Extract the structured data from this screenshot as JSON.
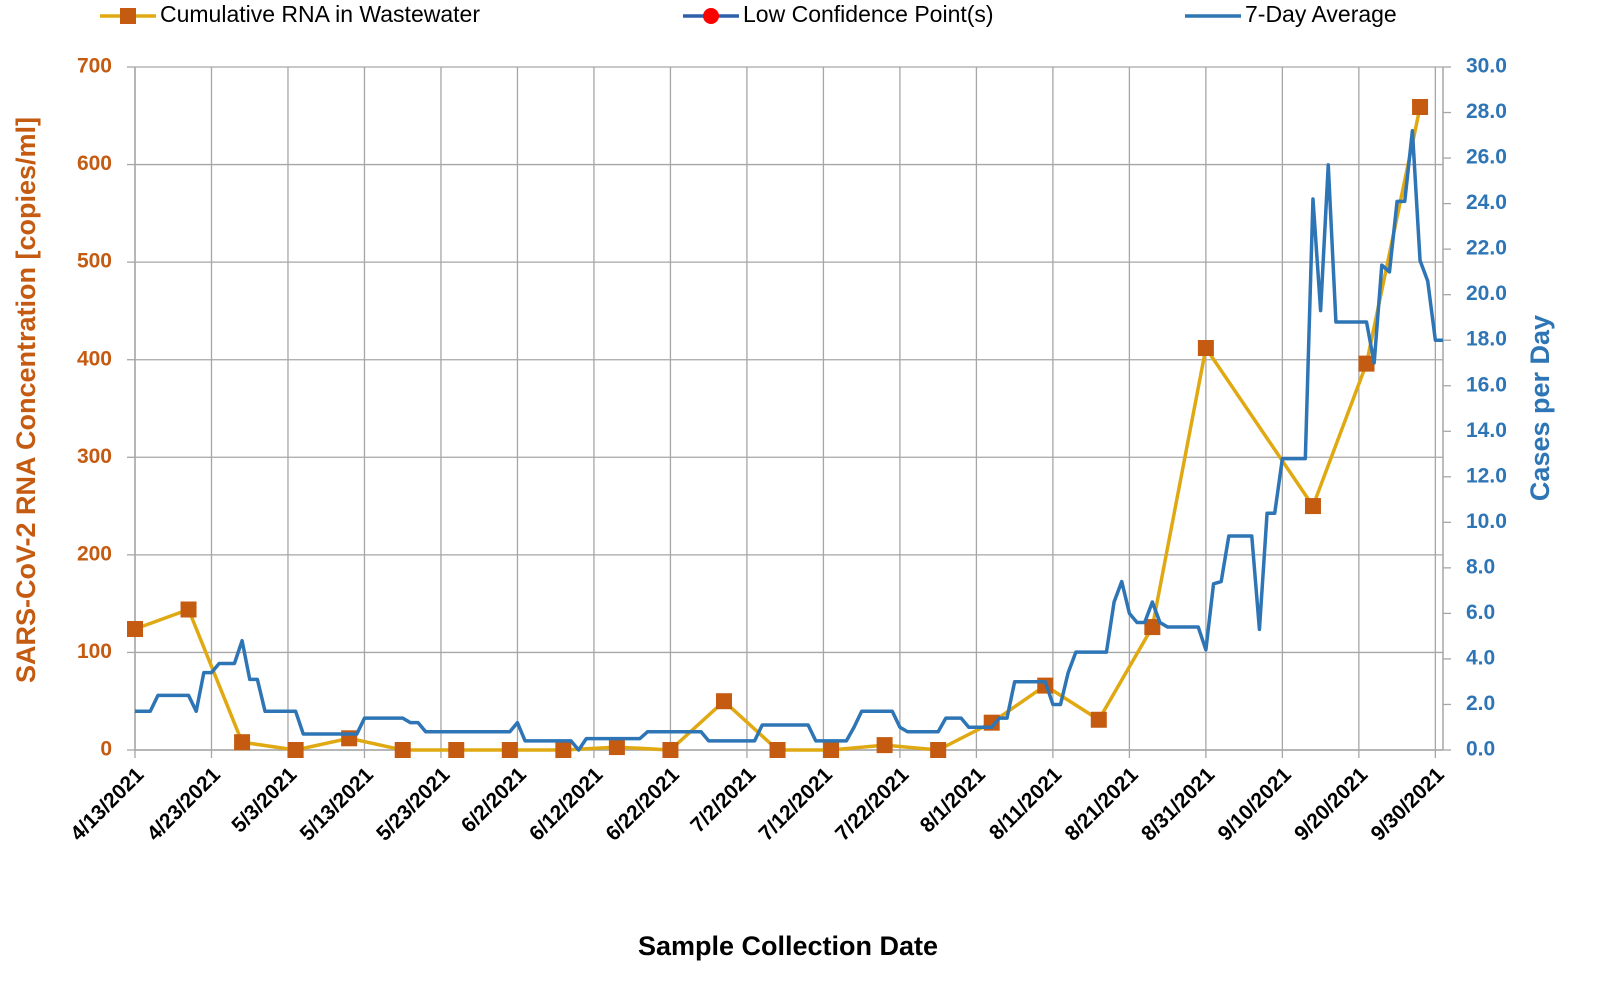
{
  "chart_data": {
    "type": "line",
    "x_label": "Sample Collection Date",
    "y_label": "SARS-CoV-2 RNA Concentration [copies/ml]",
    "y2_label": "Cases per Day",
    "xlim": [
      "4/13/2021",
      "10/1/2021"
    ],
    "xticks": [
      "4/13/2021",
      "4/23/2021",
      "5/3/2021",
      "5/13/2021",
      "5/23/2021",
      "6/2/2021",
      "6/12/2021",
      "6/22/2021",
      "7/2/2021",
      "7/12/2021",
      "7/22/2021",
      "8/1/2021",
      "8/11/2021",
      "8/21/2021",
      "8/31/2021",
      "9/10/2021",
      "9/20/2021",
      "9/30/2021"
    ],
    "ylim": [
      0,
      700
    ],
    "yticks": [
      0,
      100,
      200,
      300,
      400,
      500,
      600,
      700
    ],
    "y2lim": [
      0,
      30
    ],
    "y2ticks": [
      {
        "value": 0,
        "label": "0.0"
      },
      {
        "value": 2,
        "label": "2.0"
      },
      {
        "value": 4,
        "label": "4.0"
      },
      {
        "value": 6,
        "label": "6.0"
      },
      {
        "value": 8,
        "label": "8.0"
      },
      {
        "value": 10,
        "label": "10.0"
      },
      {
        "value": 12,
        "label": "12.0"
      },
      {
        "value": 14,
        "label": "14.0"
      },
      {
        "value": 16,
        "label": "16.0"
      },
      {
        "value": 18,
        "label": "18.0"
      },
      {
        "value": 20,
        "label": "20.0"
      },
      {
        "value": 22,
        "label": "22.0"
      },
      {
        "value": 24,
        "label": "24.0"
      },
      {
        "value": 26,
        "label": "26.0"
      },
      {
        "value": 28,
        "label": "28.0"
      },
      {
        "value": 30,
        "label": "30.0"
      }
    ],
    "grid": true,
    "y_color": "#c55a11",
    "y2_color": "#2e75b6",
    "series": [
      {
        "name": "Cumulative RNA in Wastewater",
        "color": "#e0a912",
        "marker_color": "#c55a11",
        "marker": "square",
        "axis": "y",
        "x": [
          "4/13/2021",
          "4/20/2021",
          "4/27/2021",
          "5/4/2021",
          "5/11/2021",
          "5/18/2021",
          "5/25/2021",
          "6/1/2021",
          "6/8/2021",
          "6/15/2021",
          "6/22/2021",
          "6/29/2021",
          "7/6/2021",
          "7/13/2021",
          "7/20/2021",
          "7/27/2021",
          "8/3/2021",
          "8/10/2021",
          "8/17/2021",
          "8/24/2021",
          "8/31/2021",
          "9/14/2021",
          "9/21/2021",
          "9/28/2021"
        ],
        "values": [
          124,
          144,
          8,
          0,
          12,
          0,
          0,
          0,
          0,
          3,
          0,
          50,
          0,
          0,
          5,
          0,
          28,
          66,
          31,
          126,
          412,
          250,
          396,
          659
        ]
      },
      {
        "name": "Low Confidence Point(s)",
        "color": "#2e5fa8",
        "marker_color": "#ff0000",
        "marker": "circle",
        "axis": "y",
        "x": [],
        "values": []
      },
      {
        "name": "7-Day Average",
        "color": "#2e75b6",
        "axis": "y2",
        "x": [
          "4/13/2021",
          "4/14/2021",
          "4/15/2021",
          "4/16/2021",
          "4/17/2021",
          "4/18/2021",
          "4/19/2021",
          "4/20/2021",
          "4/21/2021",
          "4/22/2021",
          "4/23/2021",
          "4/24/2021",
          "4/25/2021",
          "4/26/2021",
          "4/27/2021",
          "4/28/2021",
          "4/29/2021",
          "4/30/2021",
          "5/1/2021",
          "5/2/2021",
          "5/3/2021",
          "5/4/2021",
          "5/5/2021",
          "5/6/2021",
          "5/7/2021",
          "5/8/2021",
          "5/9/2021",
          "5/10/2021",
          "5/11/2021",
          "5/12/2021",
          "5/13/2021",
          "5/14/2021",
          "5/15/2021",
          "5/16/2021",
          "5/17/2021",
          "5/18/2021",
          "5/19/2021",
          "5/20/2021",
          "5/21/2021",
          "5/22/2021",
          "5/23/2021",
          "5/24/2021",
          "5/25/2021",
          "5/26/2021",
          "5/27/2021",
          "5/28/2021",
          "5/29/2021",
          "5/30/2021",
          "5/31/2021",
          "6/1/2021",
          "6/2/2021",
          "6/3/2021",
          "6/4/2021",
          "6/5/2021",
          "6/6/2021",
          "6/7/2021",
          "6/8/2021",
          "6/9/2021",
          "6/10/2021",
          "6/11/2021",
          "6/12/2021",
          "6/13/2021",
          "6/14/2021",
          "6/15/2021",
          "6/16/2021",
          "6/17/2021",
          "6/18/2021",
          "6/19/2021",
          "6/20/2021",
          "6/21/2021",
          "6/22/2021",
          "6/23/2021",
          "6/24/2021",
          "6/25/2021",
          "6/26/2021",
          "6/27/2021",
          "6/28/2021",
          "6/29/2021",
          "6/30/2021",
          "7/1/2021",
          "7/2/2021",
          "7/3/2021",
          "7/4/2021",
          "7/5/2021",
          "7/6/2021",
          "7/7/2021",
          "7/8/2021",
          "7/9/2021",
          "7/10/2021",
          "7/11/2021",
          "7/12/2021",
          "7/13/2021",
          "7/14/2021",
          "7/15/2021",
          "7/16/2021",
          "7/17/2021",
          "7/18/2021",
          "7/19/2021",
          "7/20/2021",
          "7/21/2021",
          "7/22/2021",
          "7/23/2021",
          "7/24/2021",
          "7/25/2021",
          "7/26/2021",
          "7/27/2021",
          "7/28/2021",
          "7/29/2021",
          "7/30/2021",
          "7/31/2021",
          "8/1/2021",
          "8/2/2021",
          "8/3/2021",
          "8/4/2021",
          "8/5/2021",
          "8/6/2021",
          "8/7/2021",
          "8/8/2021",
          "8/9/2021",
          "8/10/2021",
          "8/11/2021",
          "8/12/2021",
          "8/13/2021",
          "8/14/2021",
          "8/15/2021",
          "8/16/2021",
          "8/17/2021",
          "8/18/2021",
          "8/19/2021",
          "8/20/2021",
          "8/21/2021",
          "8/22/2021",
          "8/23/2021",
          "8/24/2021",
          "8/25/2021",
          "8/26/2021",
          "8/27/2021",
          "8/28/2021",
          "8/29/2021",
          "8/30/2021",
          "8/31/2021",
          "9/1/2021",
          "9/2/2021",
          "9/3/2021",
          "9/4/2021",
          "9/5/2021",
          "9/6/2021",
          "9/7/2021",
          "9/8/2021",
          "9/9/2021",
          "9/10/2021",
          "9/11/2021",
          "9/12/2021",
          "9/13/2021",
          "9/14/2021",
          "9/15/2021",
          "9/16/2021",
          "9/17/2021",
          "9/18/2021",
          "9/19/2021",
          "9/20/2021",
          "9/21/2021",
          "9/22/2021",
          "9/23/2021",
          "9/24/2021",
          "9/25/2021",
          "9/26/2021",
          "9/27/2021",
          "9/28/2021",
          "9/29/2021",
          "9/30/2021",
          "10/1/2021"
        ],
        "values": [
          1.7,
          1.7,
          1.7,
          2.4,
          2.4,
          2.4,
          2.4,
          2.4,
          1.7,
          3.4,
          3.4,
          3.8,
          3.8,
          3.8,
          4.8,
          3.1,
          3.1,
          1.7,
          1.7,
          1.7,
          1.7,
          1.7,
          0.7,
          0.7,
          0.7,
          0.7,
          0.7,
          0.7,
          0.7,
          0.7,
          1.4,
          1.4,
          1.4,
          1.4,
          1.4,
          1.4,
          1.2,
          1.2,
          0.8,
          0.8,
          0.8,
          0.8,
          0.8,
          0.8,
          0.8,
          0.8,
          0.8,
          0.8,
          0.8,
          0.8,
          1.2,
          0.4,
          0.4,
          0.4,
          0.4,
          0.4,
          0.4,
          0.4,
          0,
          0.5,
          0.5,
          0.5,
          0.5,
          0.5,
          0.5,
          0.5,
          0.5,
          0.8,
          0.8,
          0.8,
          0.8,
          0.8,
          0.8,
          0.8,
          0.8,
          0.4,
          0.4,
          0.4,
          0.4,
          0.4,
          0.4,
          0.4,
          1.1,
          1.1,
          1.1,
          1.1,
          1.1,
          1.1,
          1.1,
          0.4,
          0.4,
          0.4,
          0.4,
          0.4,
          1.0,
          1.7,
          1.7,
          1.7,
          1.7,
          1.7,
          1.0,
          0.8,
          0.8,
          0.8,
          0.8,
          0.8,
          1.4,
          1.4,
          1.4,
          1.0,
          1.0,
          1.0,
          1.0,
          1.4,
          1.4,
          3.0,
          3.0,
          3.0,
          3.0,
          3.0,
          2.0,
          2.0,
          3.4,
          4.3,
          4.3,
          4.3,
          4.3,
          4.3,
          6.5,
          7.4,
          6.0,
          5.6,
          5.6,
          6.5,
          5.6,
          5.4,
          5.4,
          5.4,
          5.4,
          5.4,
          4.4,
          7.3,
          7.4,
          9.4,
          9.4,
          9.4,
          9.4,
          5.3,
          10.4,
          10.4,
          12.8,
          12.8,
          12.8,
          12.8,
          24.2,
          19.3,
          25.7,
          18.8,
          18.8,
          18.8,
          18.8,
          18.8,
          17.0,
          21.3,
          21.0,
          24.1,
          24.1,
          27.2,
          21.5,
          20.6,
          18.0,
          18.0
        ]
      }
    ]
  }
}
